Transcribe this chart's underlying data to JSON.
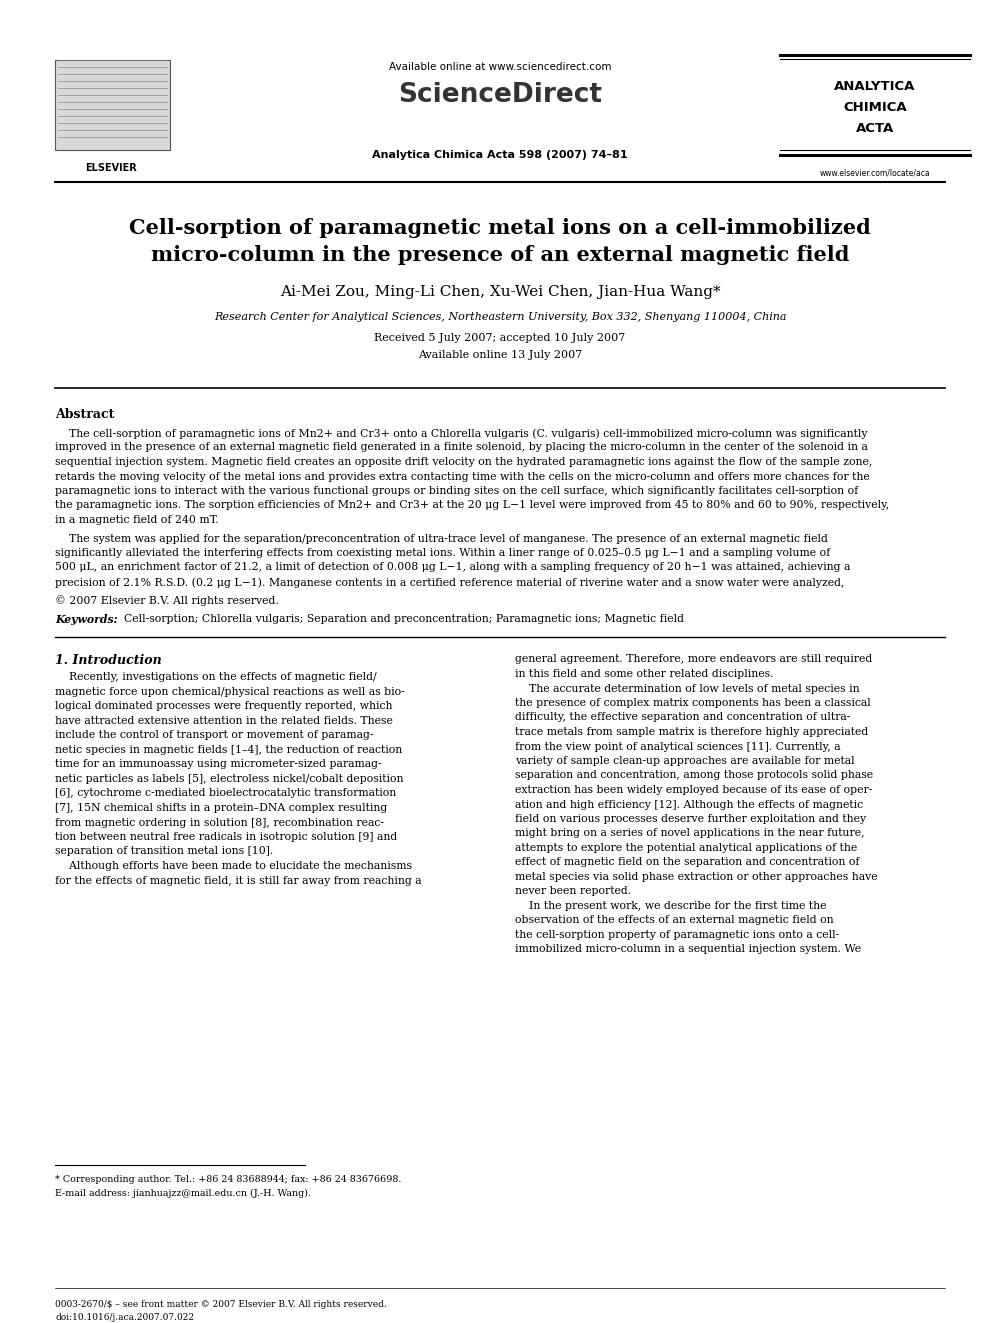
{
  "background_color": "#ffffff",
  "page_width": 9.92,
  "page_height": 13.23,
  "header_available_online": "Available online at www.sciencedirect.com",
  "header_sciencedirect": "ScienceDirect",
  "header_journal_ref": "Analytica Chimica Acta 598 (2007) 74–81",
  "journal_name_line1": "ANALYTICA",
  "journal_name_line2": "CHIMICA",
  "journal_name_line3": "ACTA",
  "elsevier_label": "ELSEVIER",
  "website": "www.elsevier.com/locate/aca",
  "title_line1": "Cell-sorption of paramagnetic metal ions on a cell-immobilized",
  "title_line2": "micro-column in the presence of an external magnetic field",
  "authors": "Ai-Mei Zou, Ming-Li Chen, Xu-Wei Chen, Jian-Hua Wang*",
  "affiliation": "Research Center for Analytical Sciences, Northeastern University, Box 332, Shenyang 110004, China",
  "received": "Received 5 July 2007; accepted 10 July 2007",
  "available_online": "Available online 13 July 2007",
  "abstract_title": "Abstract",
  "abstract_p1_line1": "    The cell-sorption of paramagnetic ions of Mn2+ and Cr3+ onto a Chlorella vulgaris (C. vulgaris) cell-immobilized micro-column was significantly",
  "abstract_p1_line2": "improved in the presence of an external magnetic field generated in a finite solenoid, by placing the micro-column in the center of the solenoid in a",
  "abstract_p1_line3": "sequential injection system. Magnetic field creates an opposite drift velocity on the hydrated paramagnetic ions against the flow of the sample zone,",
  "abstract_p1_line4": "retards the moving velocity of the metal ions and provides extra contacting time with the cells on the micro-column and offers more chances for the",
  "abstract_p1_line5": "paramagnetic ions to interact with the various functional groups or binding sites on the cell surface, which significantly facilitates cell-sorption of",
  "abstract_p1_line6": "the paramagnetic ions. The sorption efficiencies of Mn2+ and Cr3+ at the 20 μg L−1 level were improved from 45 to 80% and 60 to 90%, respectively,",
  "abstract_p1_line7": "in a magnetic field of 240 mT.",
  "abstract_p2_line1": "    The system was applied for the separation/preconcentration of ultra-trace level of manganese. The presence of an external magnetic field",
  "abstract_p2_line2": "significantly alleviated the interfering effects from coexisting metal ions. Within a liner range of 0.025–0.5 μg L−1 and a sampling volume of",
  "abstract_p2_line3": "500 μL, an enrichment factor of 21.2, a limit of detection of 0.008 μg L−1, along with a sampling frequency of 20 h−1 was attained, achieving a",
  "abstract_p2_line4": "precision of 2.1% R.S.D. (0.2 μg L−1). Manganese contents in a certified reference material of riverine water and a snow water were analyzed,",
  "abstract_p3": "© 2007 Elsevier B.V. All rights reserved.",
  "keywords_label": "Keywords:",
  "keywords_text": "  Cell-sorption; Chlorella vulgaris; Separation and preconcentration; Paramagnetic ions; Magnetic field",
  "section1_title": "1. Introduction",
  "col1_lines": [
    "    Recently, investigations on the effects of magnetic field/",
    "magnetic force upon chemical/physical reactions as well as bio-",
    "logical dominated processes were frequently reported, which",
    "have attracted extensive attention in the related fields. These",
    "include the control of transport or movement of paramag-",
    "netic species in magnetic fields [1–4], the reduction of reaction",
    "time for an immunoassay using micrometer-sized paramag-",
    "netic particles as labels [5], electroless nickel/cobalt deposition",
    "[6], cytochrome c-mediated bioelectrocatalytic transformation",
    "[7], 15N chemical shifts in a protein–DNA complex resulting",
    "from magnetic ordering in solution [8], recombination reac-",
    "tion between neutral free radicals in isotropic solution [9] and",
    "separation of transition metal ions [10].",
    "    Although efforts have been made to elucidate the mechanisms",
    "for the effects of magnetic field, it is still far away from reaching a"
  ],
  "col2_lines": [
    "general agreement. Therefore, more endeavors are still required",
    "in this field and some other related disciplines.",
    "    The accurate determination of low levels of metal species in",
    "the presence of complex matrix components has been a classical",
    "difficulty, the effective separation and concentration of ultra-",
    "trace metals from sample matrix is therefore highly appreciated",
    "from the view point of analytical sciences [11]. Currently, a",
    "variety of sample clean-up approaches are available for metal",
    "separation and concentration, among those protocols solid phase",
    "extraction has been widely employed because of its ease of oper-",
    "ation and high efficiency [12]. Although the effects of magnetic",
    "field on various processes deserve further exploitation and they",
    "might bring on a series of novel applications in the near future,",
    "attempts to explore the potential analytical applications of the",
    "effect of magnetic field on the separation and concentration of",
    "metal species via solid phase extraction or other approaches have",
    "never been reported.",
    "    In the present work, we describe for the first time the",
    "observation of the effects of an external magnetic field on",
    "the cell-sorption property of paramagnetic ions onto a cell-",
    "immobilized micro-column in a sequential injection system. We"
  ],
  "footnote_star": "* Corresponding author. Tel.: +86 24 83688944; fax: +86 24 83676698.",
  "footnote_email": "E-mail address: jianhuajzz@mail.edu.cn (J.-H. Wang).",
  "footer_issn": "0003-2670/$ – see front matter © 2007 Elsevier B.V. All rights reserved.",
  "footer_doi": "doi:10.1016/j.aca.2007.07.022"
}
